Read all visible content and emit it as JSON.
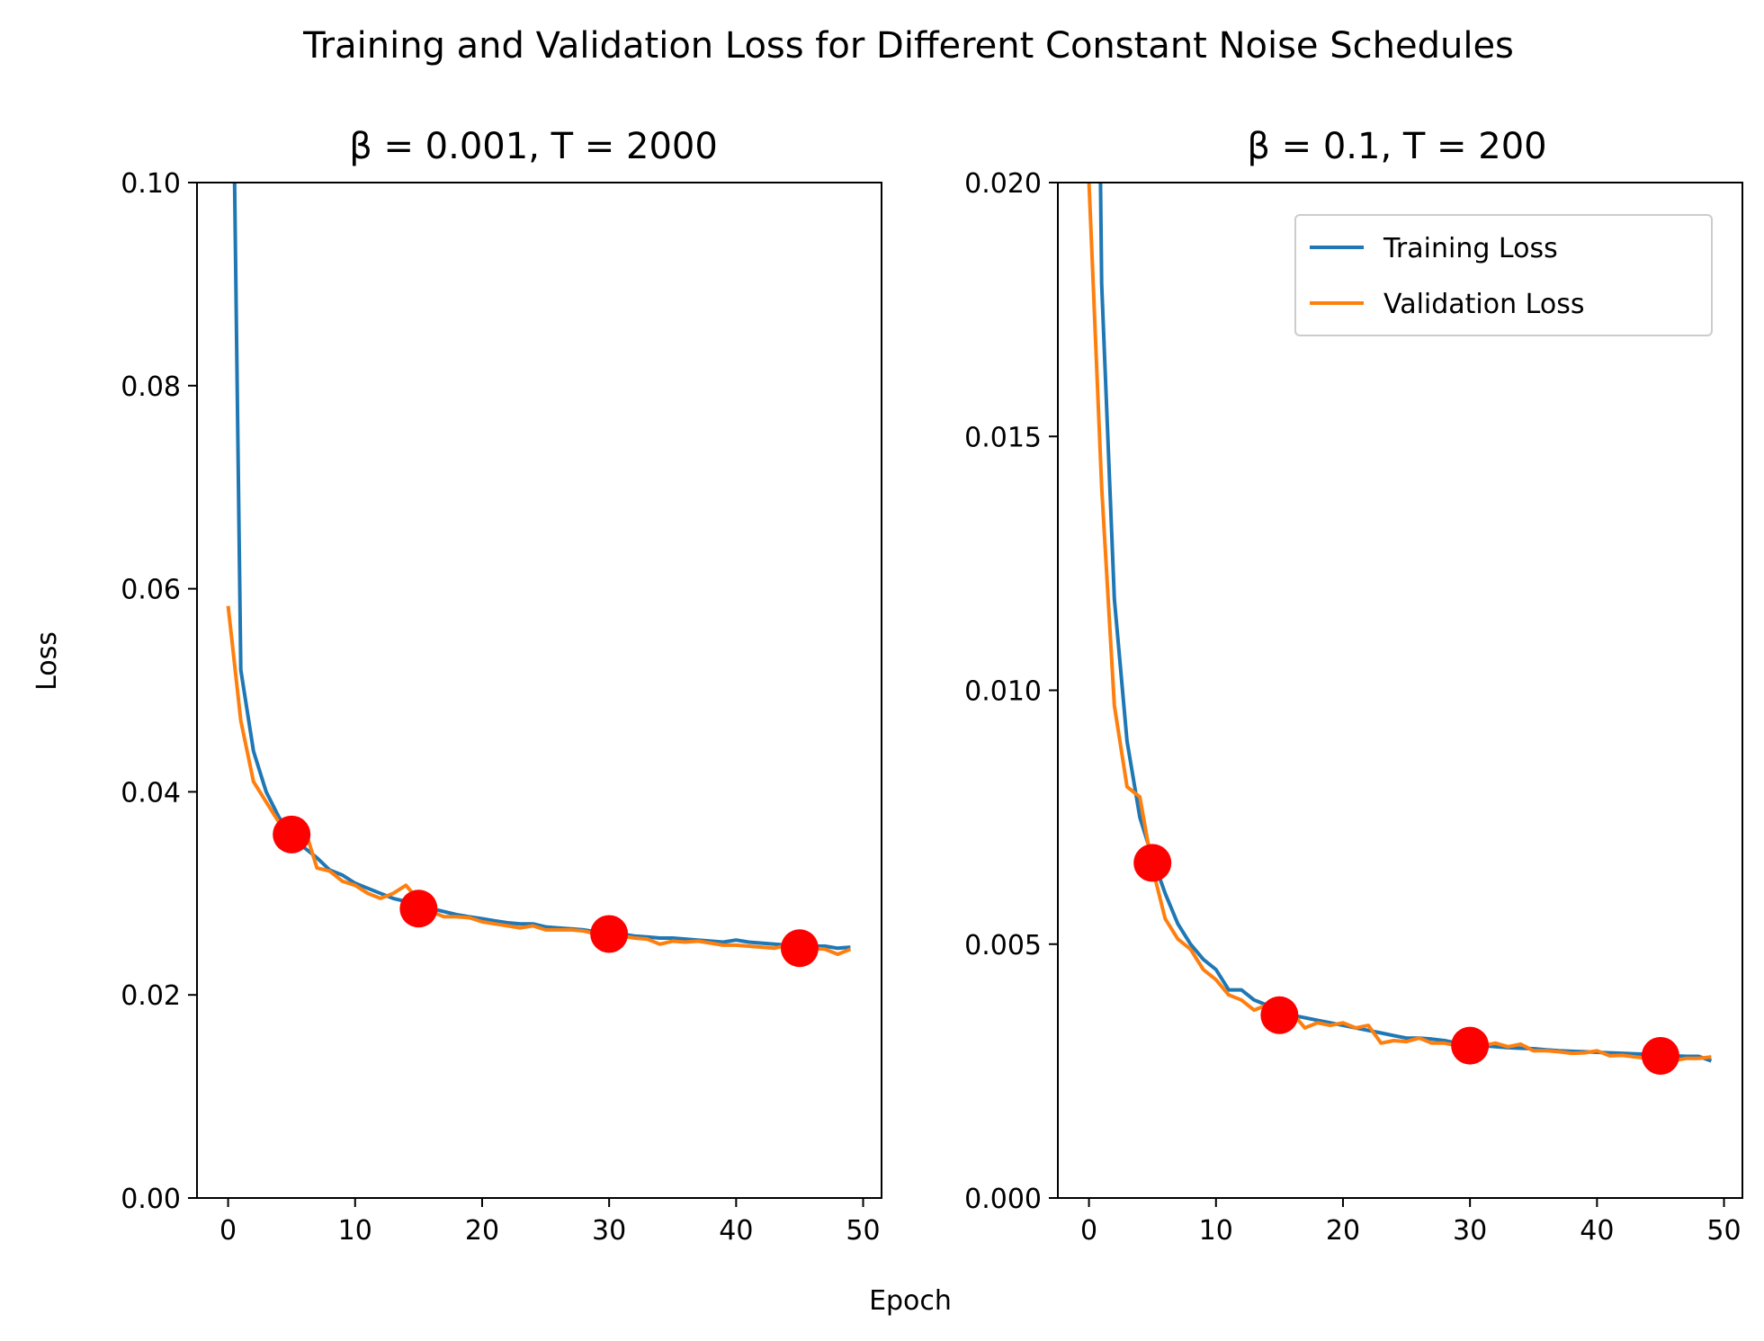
{
  "figure": {
    "suptitle": "Training and Validation Loss for Different Constant Noise Schedules",
    "xlabel": "Epoch",
    "ylabel": "Loss"
  },
  "chart_data": [
    {
      "type": "line",
      "title": "β = 0.001, T = 2000",
      "xlabel": "Epoch",
      "ylabel": "Loss",
      "xlim": [
        -2.45,
        51.45
      ],
      "ylim": [
        0.0,
        0.1
      ],
      "xticks": [
        0,
        10,
        20,
        30,
        40,
        50
      ],
      "yticks": [
        "0.00",
        "0.02",
        "0.04",
        "0.06",
        "0.08",
        "0.10"
      ],
      "legend": null,
      "series": [
        {
          "name": "Training Loss",
          "color": "#1f77b4",
          "x": [
            0,
            1,
            2,
            3,
            4,
            5,
            6,
            7,
            8,
            9,
            10,
            11,
            12,
            13,
            14,
            15,
            16,
            17,
            18,
            19,
            20,
            21,
            22,
            23,
            24,
            25,
            26,
            27,
            28,
            29,
            30,
            31,
            32,
            33,
            34,
            35,
            36,
            37,
            38,
            39,
            40,
            41,
            42,
            43,
            44,
            45,
            46,
            47,
            48,
            49
          ],
          "y": [
            0.15,
            0.052,
            0.044,
            0.04,
            0.0375,
            0.0357,
            0.0345,
            0.0335,
            0.0323,
            0.0318,
            0.031,
            0.0305,
            0.03,
            0.0295,
            0.0292,
            0.0288,
            0.0285,
            0.0282,
            0.0279,
            0.0277,
            0.0275,
            0.0273,
            0.0271,
            0.027,
            0.027,
            0.0267,
            0.0266,
            0.0265,
            0.0264,
            0.0262,
            0.0261,
            0.026,
            0.0258,
            0.0257,
            0.0256,
            0.0256,
            0.0255,
            0.0254,
            0.0253,
            0.0252,
            0.0254,
            0.0252,
            0.0251,
            0.025,
            0.0249,
            0.0249,
            0.0248,
            0.0248,
            0.0246,
            0.0247
          ]
        },
        {
          "name": "Validation Loss",
          "color": "#ff7f0e",
          "x": [
            0,
            1,
            2,
            3,
            4,
            5,
            6,
            7,
            8,
            9,
            10,
            11,
            12,
            13,
            14,
            15,
            16,
            17,
            18,
            19,
            20,
            21,
            22,
            23,
            24,
            25,
            26,
            27,
            28,
            29,
            30,
            31,
            32,
            33,
            34,
            35,
            36,
            37,
            38,
            39,
            40,
            41,
            42,
            43,
            44,
            45,
            46,
            47,
            48,
            49
          ],
          "y": [
            0.0583,
            0.047,
            0.041,
            0.039,
            0.037,
            0.0355,
            0.0365,
            0.0325,
            0.0322,
            0.0312,
            0.0308,
            0.03,
            0.0295,
            0.03,
            0.0308,
            0.0293,
            0.0282,
            0.0277,
            0.0277,
            0.0276,
            0.0272,
            0.027,
            0.0268,
            0.0266,
            0.0268,
            0.0264,
            0.0264,
            0.0264,
            0.0263,
            0.026,
            0.026,
            0.0258,
            0.0256,
            0.0255,
            0.025,
            0.0253,
            0.0252,
            0.0253,
            0.0251,
            0.0249,
            0.0249,
            0.0248,
            0.0247,
            0.0246,
            0.0249,
            0.0245,
            0.0246,
            0.0245,
            0.024,
            0.0245
          ]
        }
      ],
      "markers": {
        "color": "#ff0000",
        "x": [
          5,
          15,
          30,
          45
        ],
        "y": [
          0.0358,
          0.0285,
          0.026,
          0.0246
        ]
      }
    },
    {
      "type": "line",
      "title": "β = 0.1, T = 200",
      "xlabel": "Epoch",
      "ylabel": "",
      "xlim": [
        -2.45,
        51.45
      ],
      "ylim": [
        0.0,
        0.02
      ],
      "xticks": [
        0,
        10,
        20,
        30,
        40,
        50
      ],
      "yticks": [
        "0.000",
        "0.005",
        "0.010",
        "0.015",
        "0.020"
      ],
      "legend": "upper right",
      "series": [
        {
          "name": "Training Loss",
          "color": "#1f77b4",
          "x": [
            0,
            1,
            2,
            3,
            4,
            5,
            6,
            7,
            8,
            9,
            10,
            11,
            12,
            13,
            14,
            15,
            16,
            17,
            18,
            19,
            20,
            21,
            22,
            23,
            24,
            25,
            26,
            27,
            28,
            29,
            30,
            31,
            32,
            33,
            34,
            35,
            36,
            37,
            38,
            39,
            40,
            41,
            42,
            43,
            44,
            45,
            46,
            47,
            48,
            49
          ],
          "y": [
            0.04,
            0.018,
            0.0118,
            0.009,
            0.0075,
            0.0067,
            0.006,
            0.0054,
            0.005,
            0.0047,
            0.0045,
            0.0041,
            0.0041,
            0.0039,
            0.0038,
            0.00365,
            0.0036,
            0.00355,
            0.0035,
            0.00345,
            0.0034,
            0.00335,
            0.0033,
            0.00325,
            0.0032,
            0.00315,
            0.00315,
            0.00313,
            0.0031,
            0.00305,
            0.00303,
            0.003,
            0.00298,
            0.00296,
            0.00295,
            0.00294,
            0.00292,
            0.0029,
            0.00289,
            0.00288,
            0.00287,
            0.00286,
            0.00285,
            0.00284,
            0.00283,
            0.00282,
            0.0028,
            0.00279,
            0.00279,
            0.0027
          ]
        },
        {
          "name": "Validation Loss",
          "color": "#ff7f0e",
          "x": [
            0,
            1,
            2,
            3,
            4,
            5,
            6,
            7,
            8,
            9,
            10,
            11,
            12,
            13,
            14,
            15,
            16,
            17,
            18,
            19,
            20,
            21,
            22,
            23,
            24,
            25,
            26,
            27,
            28,
            29,
            30,
            31,
            32,
            33,
            34,
            35,
            36,
            37,
            38,
            39,
            40,
            41,
            42,
            43,
            44,
            45,
            46,
            47,
            48,
            49
          ],
          "y": [
            0.02,
            0.014,
            0.0097,
            0.0081,
            0.0079,
            0.0065,
            0.0055,
            0.0051,
            0.0049,
            0.0045,
            0.0043,
            0.004,
            0.0039,
            0.0037,
            0.0038,
            0.0035,
            0.00365,
            0.00335,
            0.00345,
            0.0034,
            0.00345,
            0.00335,
            0.0034,
            0.00305,
            0.0031,
            0.00308,
            0.00315,
            0.00305,
            0.00305,
            0.003,
            0.00323,
            0.003,
            0.00305,
            0.00298,
            0.00303,
            0.0029,
            0.0029,
            0.00288,
            0.00285,
            0.00286,
            0.0029,
            0.0028,
            0.00281,
            0.00278,
            0.00275,
            0.0027,
            0.0027,
            0.00275,
            0.00275,
            0.00278
          ]
        }
      ],
      "markers": {
        "color": "#ff0000",
        "x": [
          5,
          15,
          30,
          45
        ],
        "y": [
          0.0066,
          0.0036,
          0.003,
          0.0028
        ]
      }
    }
  ]
}
